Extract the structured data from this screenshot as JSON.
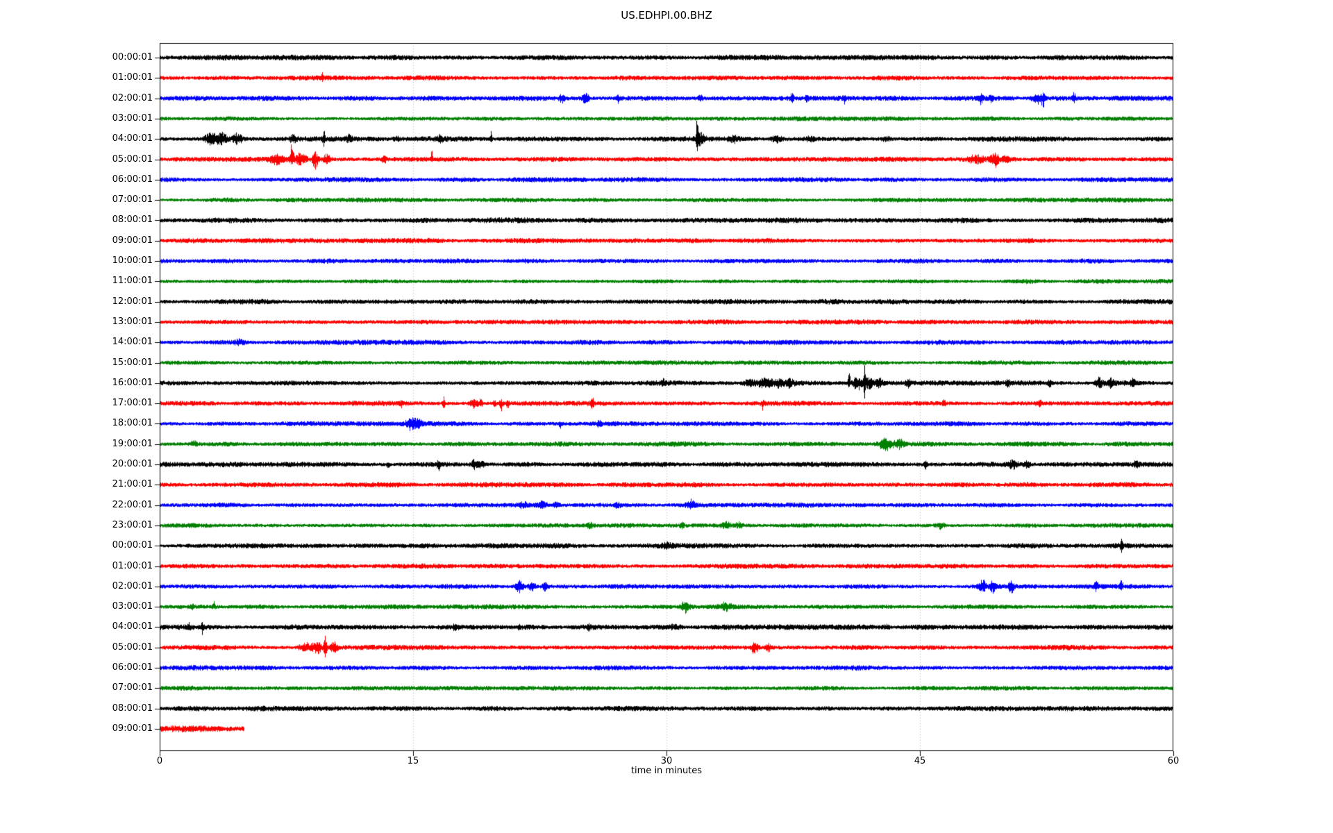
{
  "chart_data": {
    "type": "line",
    "subtype": "seismogram-helicorder",
    "title": "US.EDHPI.00.BHZ",
    "xlabel": "time in minutes",
    "xlim": [
      0,
      60
    ],
    "x_ticks": [
      0,
      15,
      30,
      45,
      60
    ],
    "grid": {
      "vertical_minutes": [
        15,
        30,
        45
      ],
      "style": "dotted",
      "color": "#b0b0b0"
    },
    "trace_color_cycle": [
      "#000000",
      "#ff0000",
      "#0000ff",
      "#008000"
    ],
    "rows": [
      {
        "label": "00:00:01",
        "color": "#000000",
        "noise": 3.4,
        "duration": 60,
        "events": []
      },
      {
        "label": "01:00:01",
        "color": "#ff0000",
        "noise": 3.2,
        "duration": 60,
        "events": [
          [
            9.6,
            9,
            4,
            0.07
          ]
        ]
      },
      {
        "label": "02:00:01",
        "color": "#0000ff",
        "noise": 3.2,
        "duration": 60,
        "events": [
          [
            23.8,
            6,
            6,
            0.15
          ],
          [
            25.2,
            7,
            7,
            0.2
          ],
          [
            27.1,
            3,
            8,
            0.08
          ],
          [
            32.0,
            4,
            4,
            0.15
          ],
          [
            37.4,
            9,
            7,
            0.1
          ],
          [
            38.3,
            4,
            8,
            0.1
          ],
          [
            40.5,
            3,
            7,
            0.08
          ],
          [
            48.6,
            7,
            7,
            0.12
          ],
          [
            49.2,
            5,
            6,
            0.1
          ],
          [
            52.0,
            6,
            8,
            0.3
          ],
          [
            52.3,
            5,
            9,
            0.1
          ],
          [
            54.1,
            8,
            8,
            0.1
          ]
        ]
      },
      {
        "label": "03:00:01",
        "color": "#008000",
        "noise": 3.0,
        "duration": 60,
        "events": []
      },
      {
        "label": "04:00:01",
        "color": "#000000",
        "noise": 3.4,
        "duration": 60,
        "events": [
          [
            2.9,
            7,
            7,
            0.3
          ],
          [
            3.6,
            9,
            8,
            0.4
          ],
          [
            4.6,
            8,
            7,
            0.25
          ],
          [
            7.9,
            6,
            5,
            0.2
          ],
          [
            9.7,
            14,
            13,
            0.06
          ],
          [
            11.2,
            5,
            4,
            0.15
          ],
          [
            14.0,
            4,
            4,
            0.15
          ],
          [
            16.6,
            5,
            4,
            0.12
          ],
          [
            19.6,
            12,
            10,
            0.05
          ],
          [
            31.8,
            53,
            14,
            0.045
          ],
          [
            32.0,
            8,
            8,
            0.25
          ],
          [
            34.0,
            4,
            4,
            0.3
          ],
          [
            36.5,
            4,
            4,
            0.3
          ],
          [
            38.5,
            3,
            3,
            0.3
          ],
          [
            43.0,
            3,
            3,
            0.3
          ]
        ]
      },
      {
        "label": "05:00:01",
        "color": "#ff0000",
        "noise": 3.2,
        "duration": 60,
        "events": [
          [
            6.9,
            7,
            7,
            0.4
          ],
          [
            7.8,
            24,
            9,
            0.1
          ],
          [
            8.3,
            8,
            8,
            0.3
          ],
          [
            9.2,
            11,
            16,
            0.15
          ],
          [
            9.9,
            7,
            6,
            0.2
          ],
          [
            13.3,
            4,
            4,
            0.15
          ],
          [
            16.1,
            15,
            4,
            0.05
          ],
          [
            48.3,
            6,
            6,
            0.4
          ],
          [
            49.4,
            9,
            11,
            0.25
          ],
          [
            50.1,
            5,
            5,
            0.2
          ]
        ]
      },
      {
        "label": "06:00:01",
        "color": "#0000ff",
        "noise": 3.2,
        "duration": 60,
        "events": []
      },
      {
        "label": "07:00:01",
        "color": "#008000",
        "noise": 3.0,
        "duration": 60,
        "events": []
      },
      {
        "label": "08:00:01",
        "color": "#000000",
        "noise": 3.6,
        "duration": 60,
        "events": []
      },
      {
        "label": "09:00:01",
        "color": "#ff0000",
        "noise": 3.2,
        "duration": 60,
        "events": []
      },
      {
        "label": "10:00:01",
        "color": "#0000ff",
        "noise": 3.2,
        "duration": 60,
        "events": []
      },
      {
        "label": "11:00:01",
        "color": "#008000",
        "noise": 3.0,
        "duration": 60,
        "events": []
      },
      {
        "label": "12:00:01",
        "color": "#000000",
        "noise": 3.4,
        "duration": 60,
        "events": []
      },
      {
        "label": "13:00:01",
        "color": "#ff0000",
        "noise": 3.2,
        "duration": 60,
        "events": []
      },
      {
        "label": "14:00:01",
        "color": "#0000ff",
        "noise": 3.2,
        "duration": 60,
        "events": [
          [
            4.7,
            3,
            3,
            0.3
          ]
        ]
      },
      {
        "label": "15:00:01",
        "color": "#008000",
        "noise": 3.0,
        "duration": 60,
        "events": []
      },
      {
        "label": "16:00:01",
        "color": "#000000",
        "noise": 3.4,
        "duration": 60,
        "events": [
          [
            29.8,
            6,
            3,
            0.08
          ],
          [
            34.9,
            5,
            5,
            0.3
          ],
          [
            35.8,
            7,
            7,
            0.4
          ],
          [
            36.6,
            6,
            6,
            0.3
          ],
          [
            37.3,
            5,
            5,
            0.2
          ],
          [
            40.8,
            20,
            6,
            0.06
          ],
          [
            41.3,
            9,
            9,
            0.3
          ],
          [
            41.7,
            26,
            28,
            0.05
          ],
          [
            42.0,
            10,
            10,
            0.25
          ],
          [
            42.6,
            8,
            8,
            0.2
          ],
          [
            44.3,
            5,
            5,
            0.15
          ],
          [
            50.2,
            5,
            4,
            0.1
          ],
          [
            52.7,
            4,
            4,
            0.15
          ],
          [
            55.6,
            7,
            7,
            0.25
          ],
          [
            56.3,
            6,
            6,
            0.2
          ],
          [
            57.6,
            5,
            5,
            0.15
          ]
        ]
      },
      {
        "label": "17:00:01",
        "color": "#ff0000",
        "noise": 3.2,
        "duration": 60,
        "events": [
          [
            14.3,
            7,
            4,
            0.07
          ],
          [
            16.8,
            10,
            5,
            0.08
          ],
          [
            18.6,
            6,
            6,
            0.25
          ],
          [
            19.0,
            8,
            5,
            0.1
          ],
          [
            19.8,
            7,
            6,
            0.08
          ],
          [
            20.2,
            5,
            11,
            0.1
          ],
          [
            20.6,
            4,
            9,
            0.08
          ],
          [
            25.6,
            8,
            6,
            0.1
          ],
          [
            35.7,
            4,
            9,
            0.08
          ],
          [
            46.4,
            6,
            5,
            0.08
          ],
          [
            52.1,
            6,
            5,
            0.08
          ]
        ]
      },
      {
        "label": "18:00:01",
        "color": "#0000ff",
        "noise": 3.2,
        "duration": 60,
        "events": [
          [
            14.9,
            8,
            8,
            0.3
          ],
          [
            15.3,
            5,
            5,
            0.2
          ],
          [
            23.7,
            3,
            6,
            0.08
          ],
          [
            26.0,
            5,
            5,
            0.12
          ]
        ]
      },
      {
        "label": "19:00:01",
        "color": "#008000",
        "noise": 3.2,
        "duration": 60,
        "events": [
          [
            2.0,
            4,
            3,
            0.2
          ],
          [
            43.0,
            9,
            9,
            0.4
          ],
          [
            43.8,
            6,
            6,
            0.25
          ]
        ]
      },
      {
        "label": "20:00:01",
        "color": "#000000",
        "noise": 3.4,
        "duration": 60,
        "events": [
          [
            13.5,
            4,
            4,
            0.1
          ],
          [
            16.5,
            6,
            8,
            0.1
          ],
          [
            18.6,
            9,
            7,
            0.12
          ],
          [
            19.0,
            5,
            5,
            0.2
          ],
          [
            45.3,
            4,
            6,
            0.1
          ],
          [
            50.5,
            6,
            6,
            0.3
          ],
          [
            51.3,
            5,
            5,
            0.2
          ],
          [
            57.8,
            7,
            6,
            0.15
          ]
        ]
      },
      {
        "label": "21:00:01",
        "color": "#ff0000",
        "noise": 3.2,
        "duration": 60,
        "events": []
      },
      {
        "label": "22:00:01",
        "color": "#0000ff",
        "noise": 3.2,
        "duration": 60,
        "events": [
          [
            21.5,
            4,
            4,
            0.3
          ],
          [
            22.6,
            5,
            5,
            0.25
          ],
          [
            23.5,
            4,
            4,
            0.2
          ],
          [
            27.1,
            4,
            4,
            0.15
          ],
          [
            31.4,
            8,
            5,
            0.2
          ]
        ]
      },
      {
        "label": "23:00:01",
        "color": "#008000",
        "noise": 3.0,
        "duration": 60,
        "events": [
          [
            25.5,
            4,
            4,
            0.2
          ],
          [
            30.9,
            6,
            3,
            0.12
          ],
          [
            33.5,
            7,
            4,
            0.25
          ],
          [
            34.3,
            5,
            3,
            0.2
          ],
          [
            46.2,
            6,
            4,
            0.2
          ]
        ]
      },
      {
        "label": "00:00:01",
        "color": "#000000",
        "noise": 3.4,
        "duration": 60,
        "events": [
          [
            30.0,
            3,
            3,
            0.3
          ],
          [
            56.9,
            7,
            12,
            0.08
          ]
        ]
      },
      {
        "label": "01:00:01",
        "color": "#ff0000",
        "noise": 3.2,
        "duration": 60,
        "events": []
      },
      {
        "label": "02:00:01",
        "color": "#0000ff",
        "noise": 3.2,
        "duration": 60,
        "events": [
          [
            21.3,
            8,
            8,
            0.25
          ],
          [
            22.0,
            7,
            7,
            0.2
          ],
          [
            22.8,
            6,
            6,
            0.15
          ],
          [
            48.7,
            9,
            10,
            0.2
          ],
          [
            49.3,
            7,
            8,
            0.15
          ],
          [
            50.4,
            8,
            9,
            0.15
          ],
          [
            55.4,
            8,
            6,
            0.12
          ],
          [
            56.9,
            8,
            5,
            0.1
          ]
        ]
      },
      {
        "label": "03:00:01",
        "color": "#008000",
        "noise": 3.0,
        "duration": 60,
        "events": [
          [
            1.9,
            3,
            6,
            0.08
          ],
          [
            3.2,
            6,
            3,
            0.08
          ],
          [
            31.1,
            8,
            7,
            0.25
          ],
          [
            33.5,
            5,
            4,
            0.35
          ]
        ]
      },
      {
        "label": "04:00:01",
        "color": "#000000",
        "noise": 3.4,
        "duration": 60,
        "events": [
          [
            1.7,
            5,
            8,
            0.07
          ],
          [
            2.5,
            10,
            9,
            0.07
          ],
          [
            17.5,
            3,
            3,
            0.15
          ],
          [
            21.3,
            3,
            6,
            0.08
          ],
          [
            25.4,
            4,
            6,
            0.07
          ],
          [
            30.5,
            3,
            3,
            0.3
          ],
          [
            43.0,
            3,
            3,
            0.2
          ]
        ]
      },
      {
        "label": "05:00:01",
        "color": "#ff0000",
        "noise": 3.2,
        "duration": 60,
        "events": [
          [
            8.6,
            7,
            7,
            0.35
          ],
          [
            9.3,
            9,
            9,
            0.25
          ],
          [
            9.8,
            17,
            15,
            0.09
          ],
          [
            10.3,
            8,
            8,
            0.2
          ],
          [
            35.2,
            7,
            8,
            0.2
          ],
          [
            36.0,
            6,
            6,
            0.15
          ]
        ]
      },
      {
        "label": "06:00:01",
        "color": "#0000ff",
        "noise": 3.2,
        "duration": 60,
        "events": []
      },
      {
        "label": "07:00:01",
        "color": "#008000",
        "noise": 3.0,
        "duration": 60,
        "events": []
      },
      {
        "label": "08:00:01",
        "color": "#000000",
        "noise": 3.4,
        "duration": 60,
        "events": []
      },
      {
        "label": "09:00:01",
        "color": "#ff0000",
        "noise": 4.0,
        "duration": 5.0,
        "events": []
      }
    ]
  }
}
